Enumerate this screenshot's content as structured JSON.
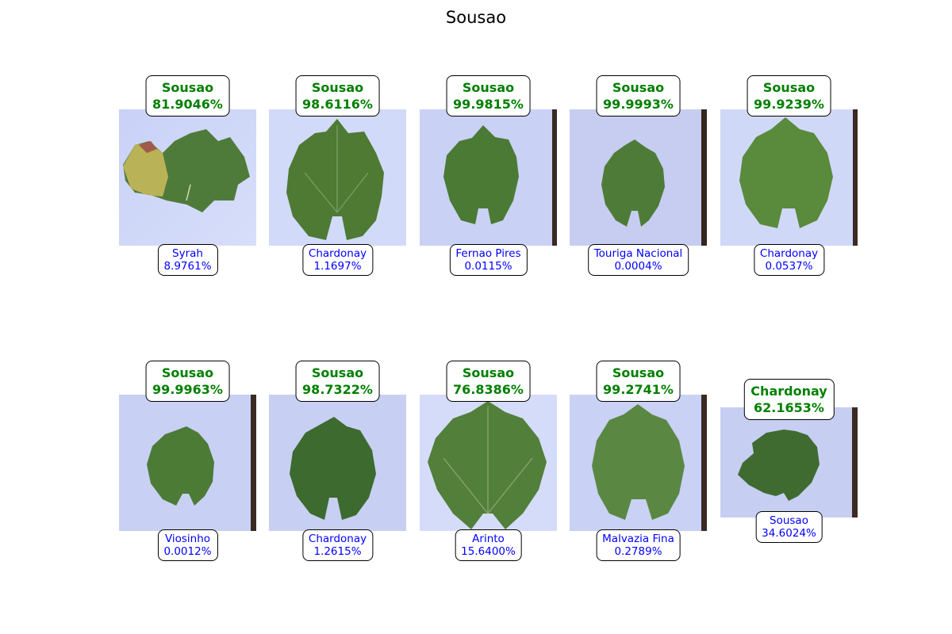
{
  "title": "Sousao",
  "colors": {
    "predicted_text": "#008000",
    "true_text": "#0000ff",
    "background": "#ffffff"
  },
  "rows": [
    [
      {
        "pred_label": "Sousao",
        "pred_pct": "81.9046%",
        "true_label": "Syrah",
        "true_pct": "8.9761%",
        "leaf_icon": "grape-leaf-icon"
      },
      {
        "pred_label": "Sousao",
        "pred_pct": "98.6116%",
        "true_label": "Chardonay",
        "true_pct": "1.1697%",
        "leaf_icon": "grape-leaf-icon"
      },
      {
        "pred_label": "Sousao",
        "pred_pct": "99.9815%",
        "true_label": "Fernao Pires",
        "true_pct": "0.0115%",
        "leaf_icon": "grape-leaf-icon"
      },
      {
        "pred_label": "Sousao",
        "pred_pct": "99.9993%",
        "true_label": "Touriga Nacional",
        "true_pct": "0.0004%",
        "leaf_icon": "grape-leaf-icon"
      },
      {
        "pred_label": "Sousao",
        "pred_pct": "99.9239%",
        "true_label": "Chardonay",
        "true_pct": "0.0537%",
        "leaf_icon": "grape-leaf-icon"
      }
    ],
    [
      {
        "pred_label": "Sousao",
        "pred_pct": "99.9963%",
        "true_label": "Viosinho",
        "true_pct": "0.0012%",
        "leaf_icon": "grape-leaf-icon"
      },
      {
        "pred_label": "Sousao",
        "pred_pct": "98.7322%",
        "true_label": "Chardonay",
        "true_pct": "1.2615%",
        "leaf_icon": "grape-leaf-icon"
      },
      {
        "pred_label": "Sousao",
        "pred_pct": "76.8386%",
        "true_label": "Arinto",
        "true_pct": "15.6400%",
        "leaf_icon": "grape-leaf-icon"
      },
      {
        "pred_label": "Sousao",
        "pred_pct": "99.2741%",
        "true_label": "Malvazia Fina",
        "true_pct": "0.2789%",
        "leaf_icon": "grape-leaf-icon"
      },
      {
        "pred_label": "Chardonay",
        "pred_pct": "62.1653%",
        "true_label": "Sousao",
        "true_pct": "34.6024%",
        "leaf_icon": "grape-leaf-icon"
      }
    ]
  ]
}
